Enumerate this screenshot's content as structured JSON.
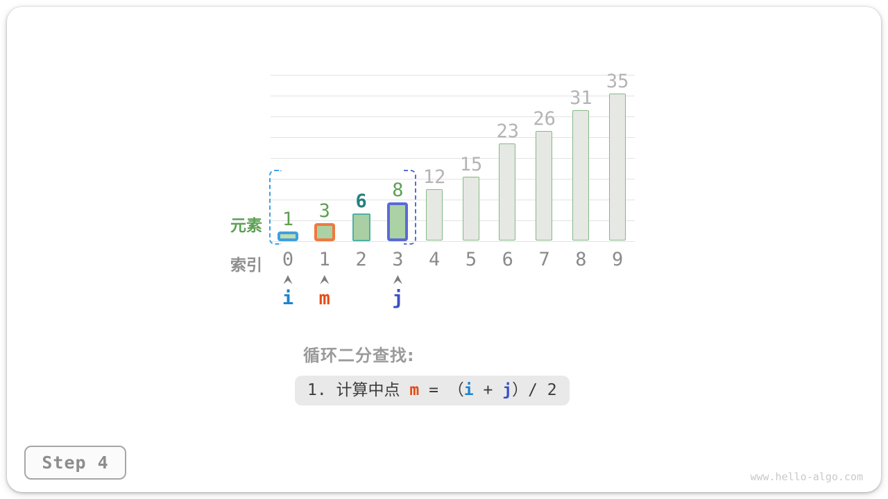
{
  "card": {
    "step_label": "Step 4",
    "watermark": "www.hello-algo.com"
  },
  "chart_data": {
    "type": "bar",
    "title": "",
    "xlabel": "",
    "ylabel": "",
    "categories": [
      "0",
      "1",
      "2",
      "3",
      "4",
      "5",
      "6",
      "7",
      "8",
      "9"
    ],
    "values": [
      1,
      3,
      6,
      8,
      12,
      15,
      23,
      26,
      31,
      35
    ],
    "ylim": [
      0,
      40
    ],
    "gridline_step": 5,
    "grid_color": "#e2e2e2",
    "legend": "none",
    "row_labels": {
      "elements": "元素",
      "indices": "索引"
    },
    "index_label_color": "#8a8a8a",
    "caret_color": "#7d7d7d",
    "bars": [
      {
        "index": 0,
        "value": 1,
        "fill": "#c3dcab",
        "border_color": "#3da0e0",
        "border_width": 4,
        "label_color": "#5da054",
        "label_bold": false
      },
      {
        "index": 1,
        "value": 3,
        "fill": "#abd2a4",
        "border_color": "#f0793f",
        "border_width": 4,
        "label_color": "#5da054",
        "label_bold": false
      },
      {
        "index": 2,
        "value": 6,
        "fill": "#a9cfa4",
        "border_color": "#4fb0a5",
        "border_width": 2,
        "label_color": "#26807f",
        "label_bold": true
      },
      {
        "index": 3,
        "value": 8,
        "fill": "#abd2a4",
        "border_color": "#5a6ad8",
        "border_width": 4,
        "label_color": "#5da054",
        "label_bold": false
      },
      {
        "index": 4,
        "value": 12,
        "fill": "#e6e8e4",
        "border_color": "#84b984",
        "border_width": 1.5,
        "label_color": "#b4b4b4",
        "label_bold": false
      },
      {
        "index": 5,
        "value": 15,
        "fill": "#e6e8e4",
        "border_color": "#84b984",
        "border_width": 1.5,
        "label_color": "#b4b4b4",
        "label_bold": false
      },
      {
        "index": 6,
        "value": 23,
        "fill": "#e6e8e4",
        "border_color": "#84b984",
        "border_width": 1.5,
        "label_color": "#b4b4b4",
        "label_bold": false
      },
      {
        "index": 7,
        "value": 26,
        "fill": "#e6e8e4",
        "border_color": "#84b984",
        "border_width": 1.5,
        "label_color": "#b4b4b4",
        "label_bold": false
      },
      {
        "index": 8,
        "value": 31,
        "fill": "#e6e8e4",
        "border_color": "#84b984",
        "border_width": 1.5,
        "label_color": "#b4b4b4",
        "label_bold": false
      },
      {
        "index": 9,
        "value": 35,
        "fill": "#e6e8e4",
        "border_color": "#84b984",
        "border_width": 1.5,
        "label_color": "#b4b4b4",
        "label_bold": false
      }
    ],
    "pointers": [
      {
        "label": "i",
        "index": 0,
        "color": "#1b84cf"
      },
      {
        "label": "m",
        "index": 1,
        "color": "#e44d16"
      },
      {
        "label": "j",
        "index": 3,
        "color": "#3a4fc4"
      }
    ],
    "search_range": {
      "from_index": 0,
      "to_index": 3,
      "left_color": "#3f9fe0",
      "right_color": "#5a6ad8"
    }
  },
  "annotation": {
    "heading": "循环二分查找:",
    "formula": {
      "bg": "#e9e9e9",
      "segments": [
        {
          "text": "1. 计算中点 ",
          "color": "#3c3c3c",
          "bold": false
        },
        {
          "text": "m",
          "color": "#e44d16",
          "bold": true
        },
        {
          "text": " = （",
          "color": "#3c3c3c",
          "bold": false
        },
        {
          "text": "i",
          "color": "#1b84cf",
          "bold": true
        },
        {
          "text": " + ",
          "color": "#3c3c3c",
          "bold": false
        },
        {
          "text": "j",
          "color": "#3a4fc4",
          "bold": true
        },
        {
          "text": "）/ 2",
          "color": "#3c3c3c",
          "bold": false
        }
      ]
    }
  }
}
